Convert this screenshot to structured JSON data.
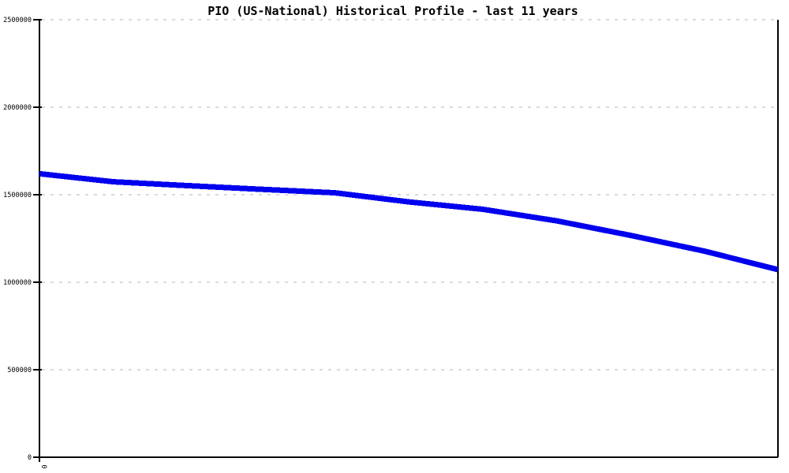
{
  "title": "PIO (US-National) Historical Profile - last 11 years",
  "chart_data": {
    "type": "line",
    "title": "PIO (US-National) Historical Profile - last 11 years",
    "series": [
      {
        "name": "PIO (US-National)",
        "x": [
          0,
          1,
          2,
          3,
          4,
          5,
          6,
          7,
          8,
          9,
          10
        ],
        "values": [
          1620000,
          1574000,
          1552000,
          1531000,
          1511000,
          1459000,
          1417000,
          1351000,
          1268000,
          1178000,
          1072000
        ]
      }
    ],
    "xlabel": "",
    "ylabel": "",
    "ylim": [
      0,
      2500000
    ],
    "y_ticks": [
      0,
      500000,
      1000000,
      1500000,
      2000000,
      2500000
    ],
    "y_tick_labels": [
      "0",
      "500000",
      "1000000",
      "1500000",
      "2000000",
      "2500000"
    ],
    "x_axis_visible_tick_labels": [
      "0"
    ],
    "legend": "none",
    "grid": "horizontal-dashed",
    "colors": {
      "line": "#0000ee",
      "grid": "#b4b4b4",
      "axis": "#000000",
      "text": "#000000",
      "background": "#ffffff"
    }
  }
}
